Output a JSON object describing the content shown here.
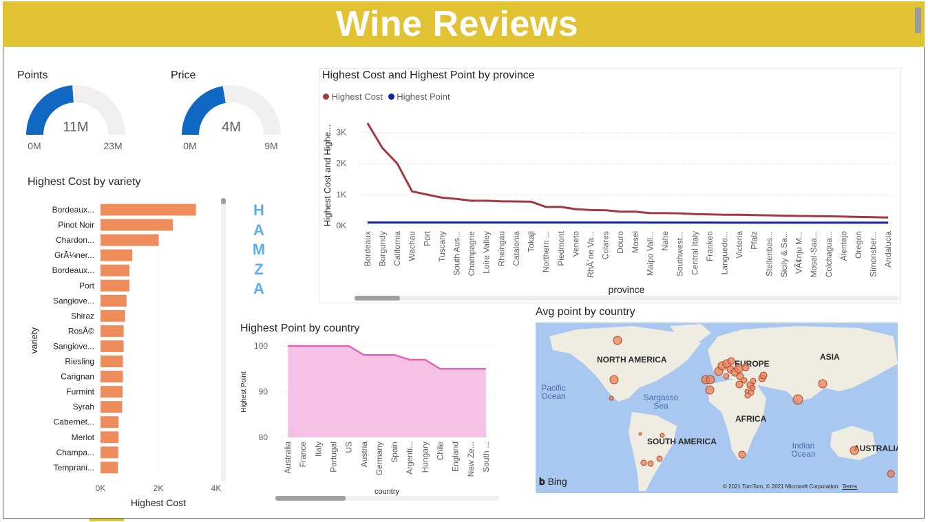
{
  "report": {
    "title": "Wine Reviews",
    "watermark_letters": [
      "H",
      "A",
      "M",
      "Z",
      "A"
    ],
    "accent_color": "#e0c232"
  },
  "gauges": [
    {
      "title": "Points",
      "value_label": "11M",
      "min_label": "0M",
      "max_label": "23M",
      "value": 11,
      "max": 23,
      "fill_color": "#1068c2"
    },
    {
      "title": "Price",
      "value_label": "4M",
      "min_label": "0M",
      "max_label": "9M",
      "value": 4,
      "max": 9,
      "fill_color": "#1068c2"
    }
  ],
  "chart_data": [
    {
      "id": "province",
      "type": "line",
      "title": "Highest Cost and Highest Point by province",
      "xlabel": "province",
      "ylabel": "Highest Cost and Highe...",
      "y_ticks": [
        "0K",
        "1K",
        "2K",
        "3K"
      ],
      "ylim": [
        0,
        3500
      ],
      "legend_position": "top-left",
      "grid": true,
      "categories": [
        "Bordeaux",
        "Burgundy",
        "California",
        "Wachau",
        "Port",
        "Tuscany",
        "South Aus...",
        "Champagne",
        "Loire Valley",
        "Rheingau",
        "Catalonia",
        "Tokaji",
        "Northern ...",
        "Piedmont",
        "Veneto",
        "RhÃ´ne Va...",
        "Colares",
        "Douro",
        "Mosel",
        "Maipo Vall...",
        "Nahe",
        "Southwest...",
        "Central Italy",
        "Franken",
        "Languedo...",
        "Victoria",
        "Pfalz",
        "Stellenbos...",
        "Sicily & Sa...",
        "VÃ¢nju M...",
        "Mosel-Saa...",
        "Colchagua...",
        "Alentejo",
        "Oregon",
        "Simonsber...",
        "Andalucia"
      ],
      "series": [
        {
          "name": "Highest Cost",
          "color": "#a4373f",
          "values": [
            3300,
            2500,
            2000,
            1100,
            1000,
            900,
            860,
            800,
            800,
            780,
            775,
            770,
            600,
            600,
            530,
            500,
            495,
            450,
            450,
            400,
            400,
            395,
            370,
            360,
            350,
            350,
            340,
            330,
            320,
            310,
            305,
            300,
            290,
            280,
            270,
            260
          ]
        },
        {
          "name": "Highest Point",
          "color": "#12239e",
          "values": [
            100,
            100,
            100,
            100,
            100,
            100,
            100,
            100,
            100,
            100,
            100,
            100,
            100,
            100,
            100,
            100,
            99,
            99,
            99,
            98,
            98,
            97,
            97,
            97,
            96,
            96,
            96,
            96,
            95,
            95,
            95,
            95,
            95,
            95,
            95,
            95
          ]
        }
      ]
    },
    {
      "id": "variety",
      "type": "bar",
      "orientation": "horizontal",
      "title": "Highest Cost by variety",
      "xlabel": "Highest Cost",
      "ylabel": "variety",
      "x_ticks": [
        "0K",
        "2K",
        "4K"
      ],
      "xlim": [
        0,
        4000
      ],
      "bar_color": "#ef8c5c",
      "grid": true,
      "categories": [
        "Bordeaux...",
        "Pinot Noir",
        "Chardon...",
        "GrÃ¼ner...",
        "Bordeaux...",
        "Port",
        "Sangiove...",
        "Shiraz",
        "RosÃ©",
        "Sangiove...",
        "Riesling",
        "Carignan",
        "Furmint",
        "Syrah",
        "Cabernet...",
        "Merlot",
        "Champa...",
        "Temprani..."
      ],
      "values": [
        3300,
        2500,
        2013,
        1100,
        1000,
        1000,
        900,
        850,
        800,
        800,
        775,
        775,
        765,
        750,
        625,
        625,
        617,
        600
      ]
    },
    {
      "id": "country",
      "type": "area",
      "title": "Highest Point by country",
      "xlabel": "country",
      "ylabel": "Highest Point",
      "y_ticks": [
        "80",
        "90",
        "100"
      ],
      "ylim": [
        80,
        100
      ],
      "line_color": "#e164b4",
      "fill_color": "#f5c2e5",
      "grid": true,
      "categories": [
        "Australia",
        "France",
        "Italy",
        "Portugal",
        "US",
        "Austria",
        "Germany",
        "Spain",
        "Argenti...",
        "Hungary",
        "Chile",
        "England",
        "New Ze...",
        "South ..."
      ],
      "values": [
        100,
        100,
        100,
        100,
        100,
        98,
        98,
        98,
        97,
        97,
        95,
        95,
        95,
        95
      ]
    }
  ],
  "map": {
    "title": "Avg point by country",
    "labels": [
      "NORTH AMERICA",
      "EUROPE",
      "ASIA",
      "AFRICA",
      "SOUTH AMERICA",
      "AUSTRALIA"
    ],
    "oceans": [
      "Pacific Ocean",
      "Sargasso Sea",
      "Indian Ocean"
    ],
    "attribution": "© 2021 TomTom, © 2021 Microsoft Corporation",
    "terms": "Terms",
    "bing_label": "Bing",
    "bubble_color": "#e8825b"
  }
}
